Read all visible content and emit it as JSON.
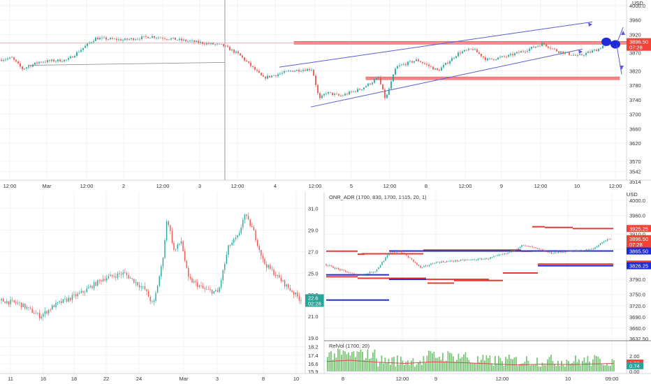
{
  "colors": {
    "up": "#26a69a",
    "down": "#ef5350",
    "grid": "#f0f3f6",
    "axis": "#d1d4dc",
    "trend": "#5b5bd6",
    "zone": "#f4868a",
    "levelRed": "#e53935",
    "levelBlue": "#1e2bd6",
    "volGreen": "#7cc47a",
    "volMa": "#d84b4b",
    "badgeRed": "#f44336",
    "badgeBlue": "#1e2bd6",
    "badgeGreen": "#26a69a"
  },
  "icons": [
    "arrow-up-right-icon",
    "arrow-down-icon",
    "candle-marker-icon"
  ],
  "chart_data": [
    {
      "id": "top",
      "type": "candlestick",
      "currency": "USD",
      "yticks": [
        4000,
        3960,
        3920,
        3870,
        3820,
        3780,
        3740,
        3700,
        3660,
        3620,
        3570,
        3542,
        3514
      ],
      "ylim": [
        3514,
        4000
      ],
      "xticks": [
        "12:00",
        "Mar",
        "12:00",
        "2",
        "12:00",
        "3",
        "12:00",
        "4",
        "12:00",
        "5",
        "12:00",
        "8",
        "12:00",
        "9",
        "12:00",
        "10",
        "12:00"
      ],
      "last_price": "3896.50",
      "countdown": "07:28",
      "resistance_zone": 3898,
      "support_zone": 3801
    },
    {
      "id": "bottom-left",
      "type": "candlestick",
      "yticks": [
        31.0,
        29.0,
        27.0,
        25.0,
        23.0,
        21.0,
        19.0,
        18.2,
        17.4,
        16.6,
        15.9
      ],
      "ylim": [
        15.9,
        32.2
      ],
      "xticks": [
        "11",
        "16",
        "18",
        "22",
        "24",
        "Mar",
        "3",
        "8",
        "10"
      ],
      "last_price": "22.6",
      "countdown": "02:28"
    },
    {
      "id": "bottom-right",
      "type": "candlestick",
      "currency": "USD",
      "indicator": "ONR_ADR (1700, 830, 1700, 1515, 20, 1)",
      "yticks": [
        4000.0,
        3960.0,
        3910.0,
        3870.0,
        3830.0,
        3790.0,
        3750.0,
        3720.0,
        3690.0,
        3660.0,
        3632.5
      ],
      "ylim": [
        3632.5,
        4000
      ],
      "xticks": [
        "8",
        "12:00",
        "9",
        "12:00",
        "10",
        "09:00"
      ],
      "last_price": "3896.50",
      "countdown": "07:28",
      "levels": {
        "upper_red": "3925.25",
        "mid_blue": "3865.50",
        "lower_red": "3830.75",
        "lower_blue": "3826.25"
      },
      "volume_indicator": "RelVol (1700, 20)",
      "volume_ticks": [
        2.0,
        1.09,
        0.74,
        0.0
      ]
    }
  ]
}
